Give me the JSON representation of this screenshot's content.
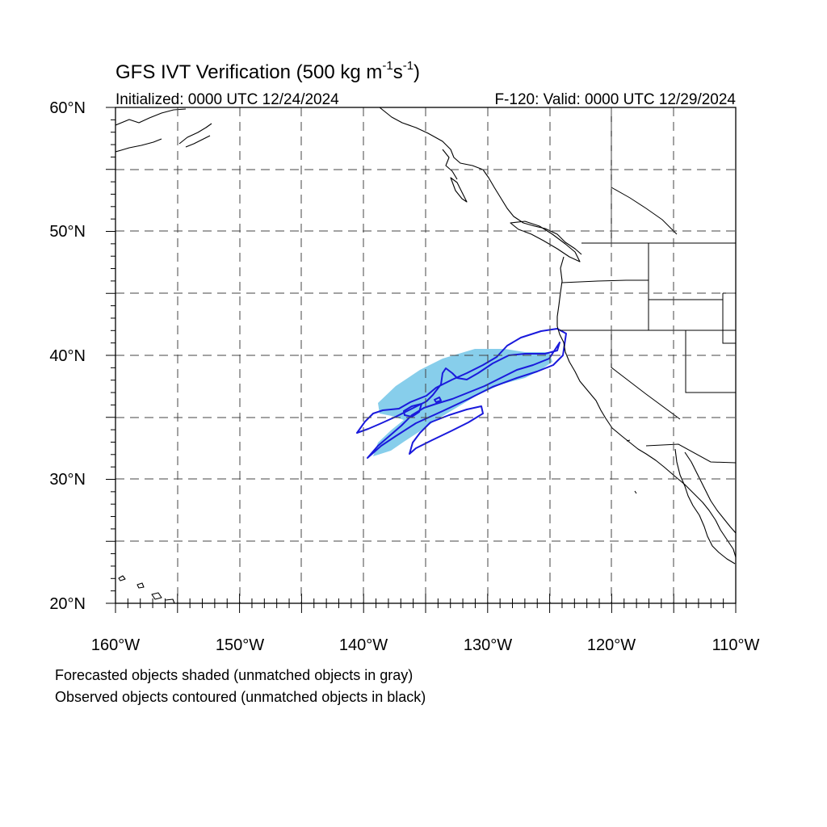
{
  "map": {
    "title_main": "GFS IVT Verification (500 kg m",
    "title_exp1": "-1",
    "title_mid": "s",
    "title_exp2": "-1",
    "title_close": ")",
    "initialized": "Initialized: 0000 UTC 12/24/2024",
    "valid": "F-120: Valid: 0000 UTC 12/29/2024",
    "lat_labels": [
      "60°N",
      "50°N",
      "40°N",
      "30°N",
      "20°N"
    ],
    "lon_labels": [
      "160°W",
      "150°W",
      "140°W",
      "130°W",
      "120°W",
      "110°W"
    ],
    "extent": {
      "lon_min": -160,
      "lon_max": -110,
      "lat_min": 20,
      "lat_max": 60
    },
    "note_forecast": "Forecasted objects shaded (unmatched objects in gray)",
    "note_observed": "Observed objects contoured (unmatched objects in black)",
    "colors": {
      "forecast_fill": "#87ceeb",
      "observed_contour": "#1a1adc",
      "coast": "#000000",
      "grid": "#444444"
    }
  }
}
